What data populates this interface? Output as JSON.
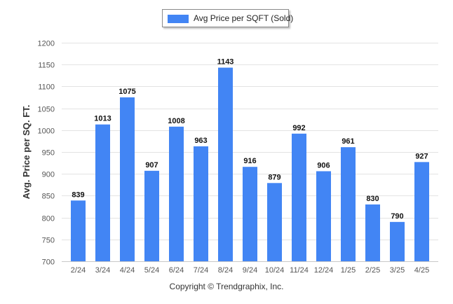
{
  "chart_data": {
    "type": "bar",
    "categories": [
      "2/24",
      "3/24",
      "4/24",
      "5/24",
      "6/24",
      "7/24",
      "8/24",
      "9/24",
      "10/24",
      "11/24",
      "12/24",
      "1/25",
      "2/25",
      "3/25",
      "4/25"
    ],
    "series": [
      {
        "name": "Avg Price per SQFT (Sold)",
        "values": [
          839,
          1013,
          1075,
          907,
          1008,
          963,
          1143,
          916,
          879,
          992,
          906,
          961,
          830,
          790,
          927
        ]
      }
    ],
    "ylabel": "Avg. Price per SQ. FT.",
    "xlabel": "",
    "ylim": [
      700,
      1200
    ],
    "yticks": [
      700,
      750,
      800,
      850,
      900,
      950,
      1000,
      1050,
      1100,
      1150,
      1200
    ],
    "grid": true,
    "legend": "top-center",
    "bar_color": "#4285f4",
    "data_labels": true
  },
  "footer": {
    "copyright": "Copyright © Trendgraphix, Inc."
  }
}
